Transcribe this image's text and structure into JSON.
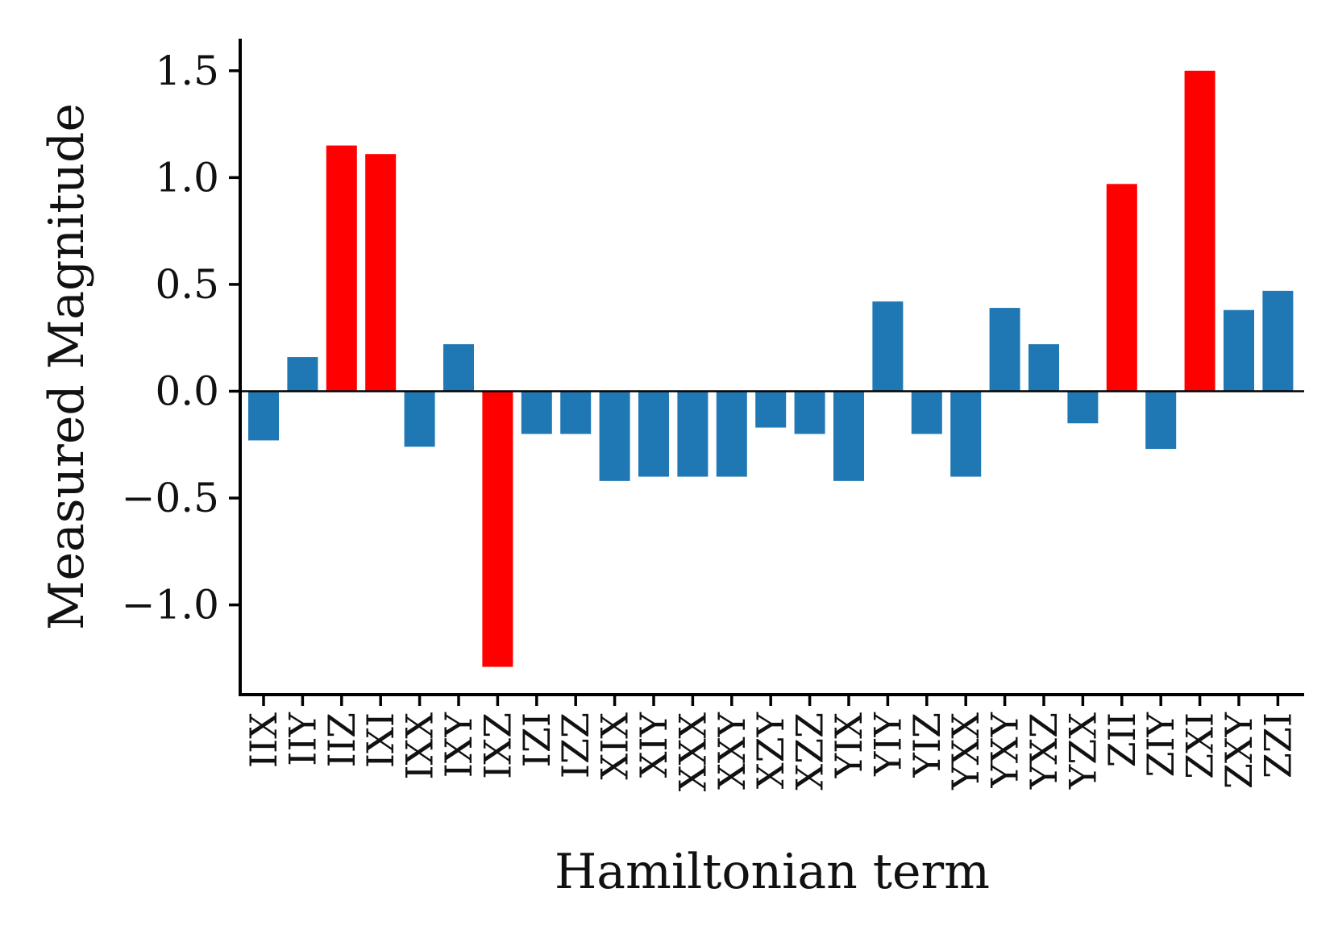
{
  "chart_data": {
    "type": "bar",
    "xlabel": "Hamiltonian term",
    "ylabel": "Measured Magnitude",
    "ylim": [
      -1.42,
      1.65
    ],
    "yticks": [
      -1.0,
      -0.5,
      0.0,
      0.5,
      1.0,
      1.5
    ],
    "ytick_labels": [
      "−1.0",
      "−0.5",
      "0.0",
      "0.5",
      "1.0",
      "1.5"
    ],
    "categories": [
      "IIX",
      "IIY",
      "IIZ",
      "IXI",
      "IXX",
      "IXY",
      "IXZ",
      "IZI",
      "IZZ",
      "XIX",
      "XIY",
      "XXX",
      "XXY",
      "XZY",
      "XZZ",
      "YIX",
      "YIY",
      "YIZ",
      "YXX",
      "YXY",
      "YXZ",
      "YZX",
      "ZII",
      "ZIY",
      "ZXI",
      "ZXY",
      "ZZI"
    ],
    "values": [
      -0.23,
      0.16,
      1.15,
      1.11,
      -0.26,
      0.22,
      -1.29,
      -0.2,
      -0.2,
      -0.42,
      -0.4,
      -0.4,
      -0.4,
      -0.17,
      -0.2,
      -0.42,
      0.42,
      -0.2,
      -0.4,
      0.39,
      0.22,
      -0.15,
      0.97,
      -0.27,
      1.5,
      0.38,
      0.47
    ],
    "highlighted": [
      false,
      false,
      true,
      true,
      false,
      false,
      true,
      false,
      false,
      false,
      false,
      false,
      false,
      false,
      false,
      false,
      false,
      false,
      false,
      false,
      false,
      false,
      true,
      false,
      true,
      false,
      false
    ],
    "colors": {
      "default": "#1f77b4",
      "highlight": "#ff0000",
      "axis": "#000000"
    },
    "legend": "none",
    "grid": false
  }
}
